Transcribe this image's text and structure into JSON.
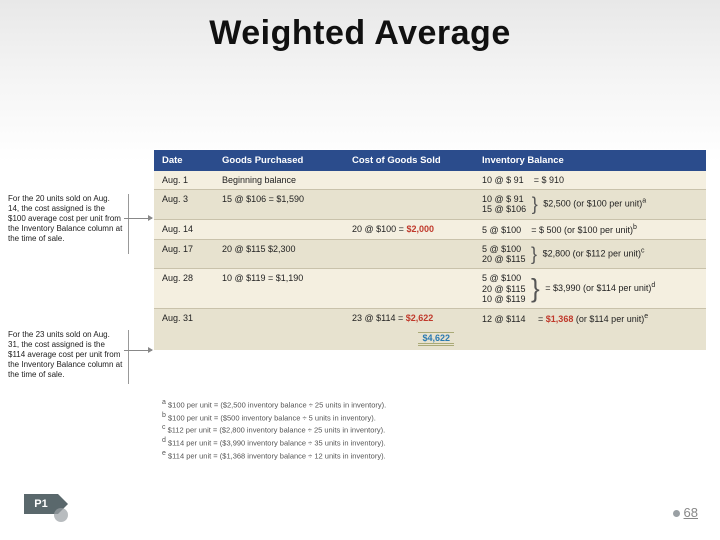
{
  "title": "Weighted Average",
  "notes": {
    "n1": "For the 20 units sold on Aug. 14, the cost assigned is the $100 average cost per unit from the Inventory Balance column at the time of sale.",
    "n2": "For the 23 units sold on Aug. 31, the cost assigned is the $114 average cost per unit from the Inventory Balance column at the time of sale."
  },
  "headers": {
    "date": "Date",
    "goods": "Goods Purchased",
    "cogs": "Cost of Goods Sold",
    "inv": "Inventory Balance"
  },
  "rows": {
    "aug1": {
      "date": "Aug.  1",
      "goods": "Beginning balance",
      "cogs": "",
      "inv_main": "10 @ $  91",
      "inv_total": "=  $   910"
    },
    "aug3": {
      "date": "Aug.  3",
      "goods": "15 @ $106 = $1,590",
      "cogs": "",
      "inv_line1": "10 @ $  91",
      "inv_line2": "15 @ $106",
      "inv_summary": "$2,500 (or $100 per unit)",
      "sup": "a"
    },
    "aug14": {
      "date": "Aug. 14",
      "goods": "",
      "cogs_pre": "20 @ $100 = ",
      "cogs_val": "$2,000",
      "inv_main": "5 @ $100",
      "inv_total": "=  $   500 (or $100 per unit)",
      "sup": "b"
    },
    "aug17": {
      "date": "Aug. 17",
      "goods": "20 @ $115    $2,300",
      "cogs": "",
      "inv_line1": "5 @ $100",
      "inv_line2": "20 @ $115",
      "inv_summary": "$2,800 (or $112 per unit)",
      "sup": "c"
    },
    "aug28": {
      "date": "Aug. 28",
      "goods": "10 @ $119 = $1,190",
      "cogs": "",
      "inv_line1": "5 @ $100",
      "inv_line2": "20 @ $115",
      "inv_line3": "10 @ $119",
      "inv_summary": "=  $3,990 (or $114 per unit)",
      "sup": "d"
    },
    "aug31": {
      "date": "Aug. 31",
      "goods": "",
      "cogs_pre": "23 @ $114 = ",
      "cogs_val": "$2,622",
      "inv_main": "12 @ $114",
      "inv_total_pre": "=  ",
      "inv_total_red": "$1,368",
      "inv_total_post": " (or $114 per unit)",
      "sup": "e"
    },
    "total": "$4,622"
  },
  "footnotes": {
    "a": "$100 per unit  =  ($2,500 inventory balance  ÷  25 units in inventory).",
    "b": "$100 per unit  =  ($500 inventory balance  ÷  5 units in inventory).",
    "c": "$112 per unit  =  ($2,800 inventory balance  ÷  25 units in inventory).",
    "d": "$114 per unit  =  ($3,990 inventory balance  ÷  35 units in inventory).",
    "e": "$114 per unit  =  ($1,368 inventory balance  ÷  12 units in inventory)."
  },
  "p1": "P1",
  "page": "68",
  "colors": {
    "header_bg": "#2b4c8c",
    "band_even": "#f4efe0",
    "band_odd": "#e7e2cf",
    "red": "#c0392b"
  }
}
